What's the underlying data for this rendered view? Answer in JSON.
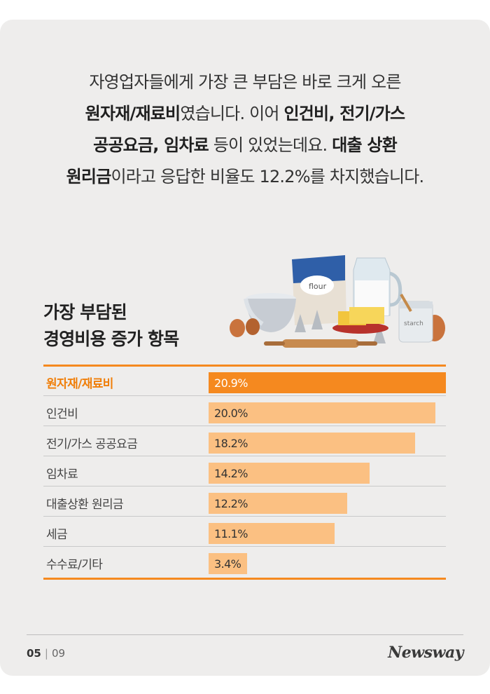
{
  "intro": {
    "line1": "자영업자들에게 가장 큰 부담은 바로 크게 오른",
    "line2_bold": "원자재/재료비",
    "line2_rest": "였습니다. 이어 ",
    "line2_bold2": "인건비, 전기/가스",
    "line3_bold": "공공요금, 임차료",
    "line3_mid": " 등이 있었는데요. ",
    "line3_bold2": "대출 상환",
    "line4_bold": "원리금",
    "line4_rest": "이라고 응답한 비율도 12.2%를 차지했습니다."
  },
  "illustration": {
    "flour_label": "flour",
    "starch_label": "starch"
  },
  "chart_data": {
    "type": "bar",
    "orientation": "horizontal",
    "title_line1": "가장 부담된",
    "title_line2": "경영비용 증가 항목",
    "categories": [
      "원자재/재료비",
      "인건비",
      "전기/가스 공공요금",
      "임차료",
      "대출상환 원리금",
      "세금",
      "수수료/기타"
    ],
    "values": [
      20.9,
      20.0,
      18.2,
      14.2,
      12.2,
      11.1,
      3.4
    ],
    "value_labels": [
      "20.9%",
      "20.0%",
      "18.2%",
      "14.2%",
      "12.2%",
      "11.1%",
      "3.4%"
    ],
    "highlight_index": 0,
    "colors": {
      "highlight": "#f5891f",
      "bar": "#fbc082"
    }
  },
  "footer": {
    "page": "05",
    "separator": "|",
    "total": "09",
    "brand": "Newsway"
  }
}
